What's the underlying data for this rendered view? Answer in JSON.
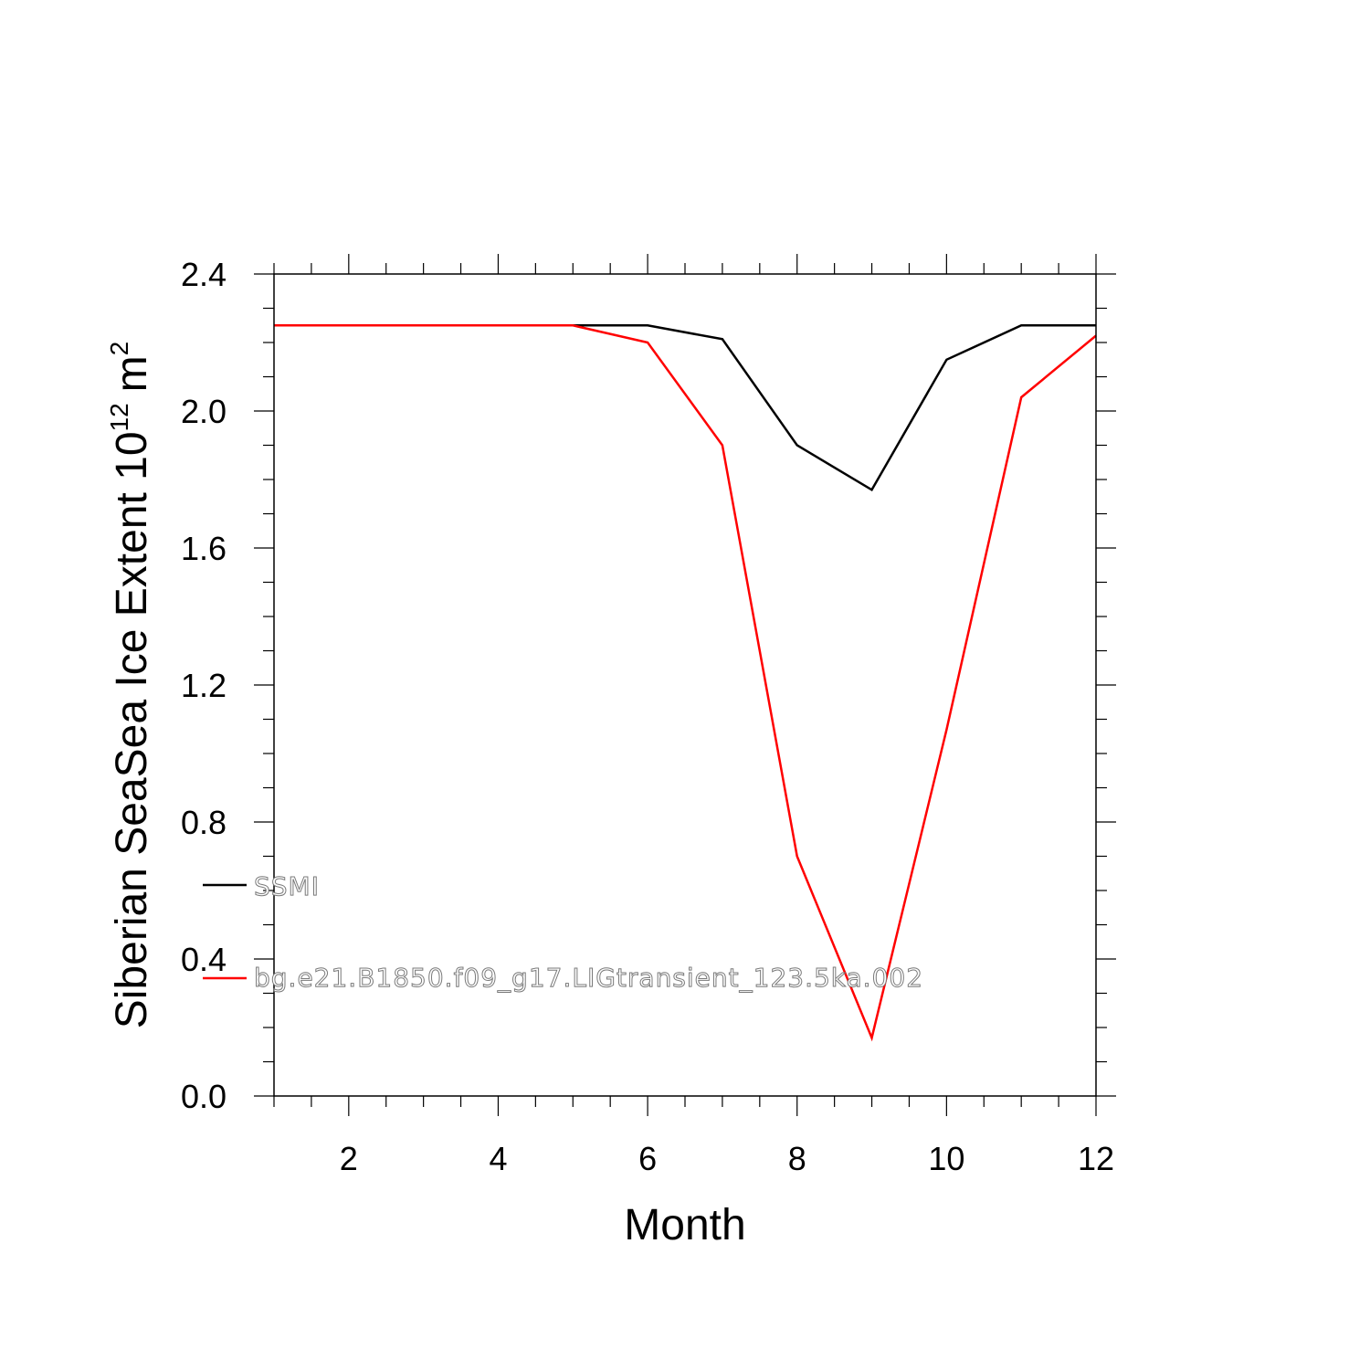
{
  "chart_data": {
    "type": "line",
    "xlabel": "Month",
    "ylabel_main": "Siberian SeaSea Ice Extent 10",
    "ylabel_sup": "12",
    "ylabel_unit": "m",
    "ylabel_unit_sup": "2",
    "xlim": [
      1,
      12
    ],
    "ylim": [
      0.0,
      2.4
    ],
    "x_ticks": [
      2,
      4,
      6,
      8,
      10,
      12
    ],
    "x_tick_labels": [
      "2",
      "4",
      "6",
      "8",
      "10",
      "12"
    ],
    "y_ticks": [
      0.0,
      0.4,
      0.8,
      1.2,
      1.6,
      2.0,
      2.4
    ],
    "y_tick_labels": [
      "0.0",
      "0.4",
      "0.8",
      "1.2",
      "1.6",
      "2.0",
      "2.4"
    ],
    "grid": false,
    "legend_position": "bottom-left-inside",
    "x": [
      1,
      2,
      3,
      4,
      5,
      6,
      7,
      8,
      9,
      10,
      11,
      12
    ],
    "series": [
      {
        "name": "SSMI",
        "color": "#000000",
        "values": [
          2.25,
          2.25,
          2.25,
          2.25,
          2.25,
          2.25,
          2.21,
          1.9,
          1.77,
          2.15,
          2.25,
          2.25
        ]
      },
      {
        "name": "bg.e21.B1850.f09_g17.LIGtransient_123.5ka.002",
        "color": "#ff0000",
        "values": [
          2.25,
          2.25,
          2.25,
          2.25,
          2.25,
          2.2,
          1.9,
          0.7,
          0.17,
          1.07,
          2.04,
          2.22
        ]
      }
    ]
  }
}
